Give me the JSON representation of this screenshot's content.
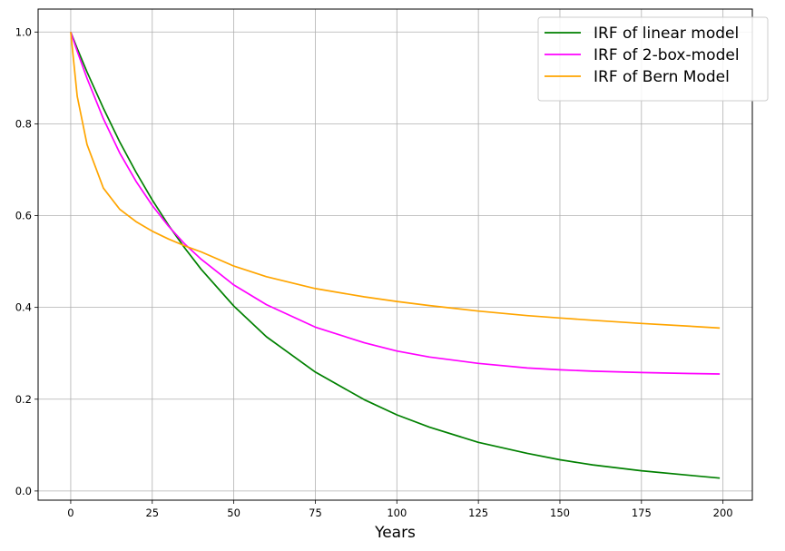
{
  "chart_data": {
    "type": "line",
    "title": "",
    "xlabel": "Years",
    "ylabel": "",
    "xlim": [
      -10,
      209
    ],
    "ylim": [
      -0.02,
      1.05
    ],
    "xticks": [
      0,
      25,
      50,
      75,
      100,
      125,
      150,
      175,
      200
    ],
    "xtick_labels": [
      "0",
      "25",
      "50",
      "75",
      "100",
      "125",
      "150",
      "175",
      "200"
    ],
    "yticks": [
      0.0,
      0.2,
      0.4,
      0.6,
      0.8,
      1.0
    ],
    "ytick_labels": [
      "0.0",
      "0.2",
      "0.4",
      "0.6",
      "0.8",
      "1.0"
    ],
    "grid": true,
    "legend_position": "top-right",
    "x": [
      0,
      2,
      5,
      10,
      15,
      20,
      25,
      30,
      35,
      40,
      50,
      60,
      75,
      90,
      100,
      110,
      125,
      140,
      150,
      160,
      175,
      190,
      199
    ],
    "series": [
      {
        "name": "IRF of linear model",
        "color": "#008000",
        "values": [
          1.0,
          0.964,
          0.913,
          0.834,
          0.761,
          0.695,
          0.634,
          0.579,
          0.529,
          0.483,
          0.403,
          0.336,
          0.259,
          0.199,
          0.166,
          0.139,
          0.106,
          0.082,
          0.068,
          0.057,
          0.044,
          0.034,
          0.028
        ]
      },
      {
        "name": "IRF of 2-box-model",
        "color": "#ff00ff",
        "values": [
          1.0,
          0.958,
          0.899,
          0.811,
          0.737,
          0.675,
          0.622,
          0.577,
          0.538,
          0.505,
          0.449,
          0.406,
          0.357,
          0.323,
          0.305,
          0.292,
          0.278,
          0.268,
          0.264,
          0.261,
          0.258,
          0.256,
          0.255
        ]
      },
      {
        "name": "IRF of Bern Model",
        "color": "#ffa500",
        "values": [
          1.0,
          0.86,
          0.755,
          0.66,
          0.614,
          0.587,
          0.566,
          0.549,
          0.534,
          0.521,
          0.49,
          0.467,
          0.441,
          0.423,
          0.413,
          0.404,
          0.392,
          0.382,
          0.377,
          0.372,
          0.365,
          0.359,
          0.355
        ]
      }
    ]
  }
}
